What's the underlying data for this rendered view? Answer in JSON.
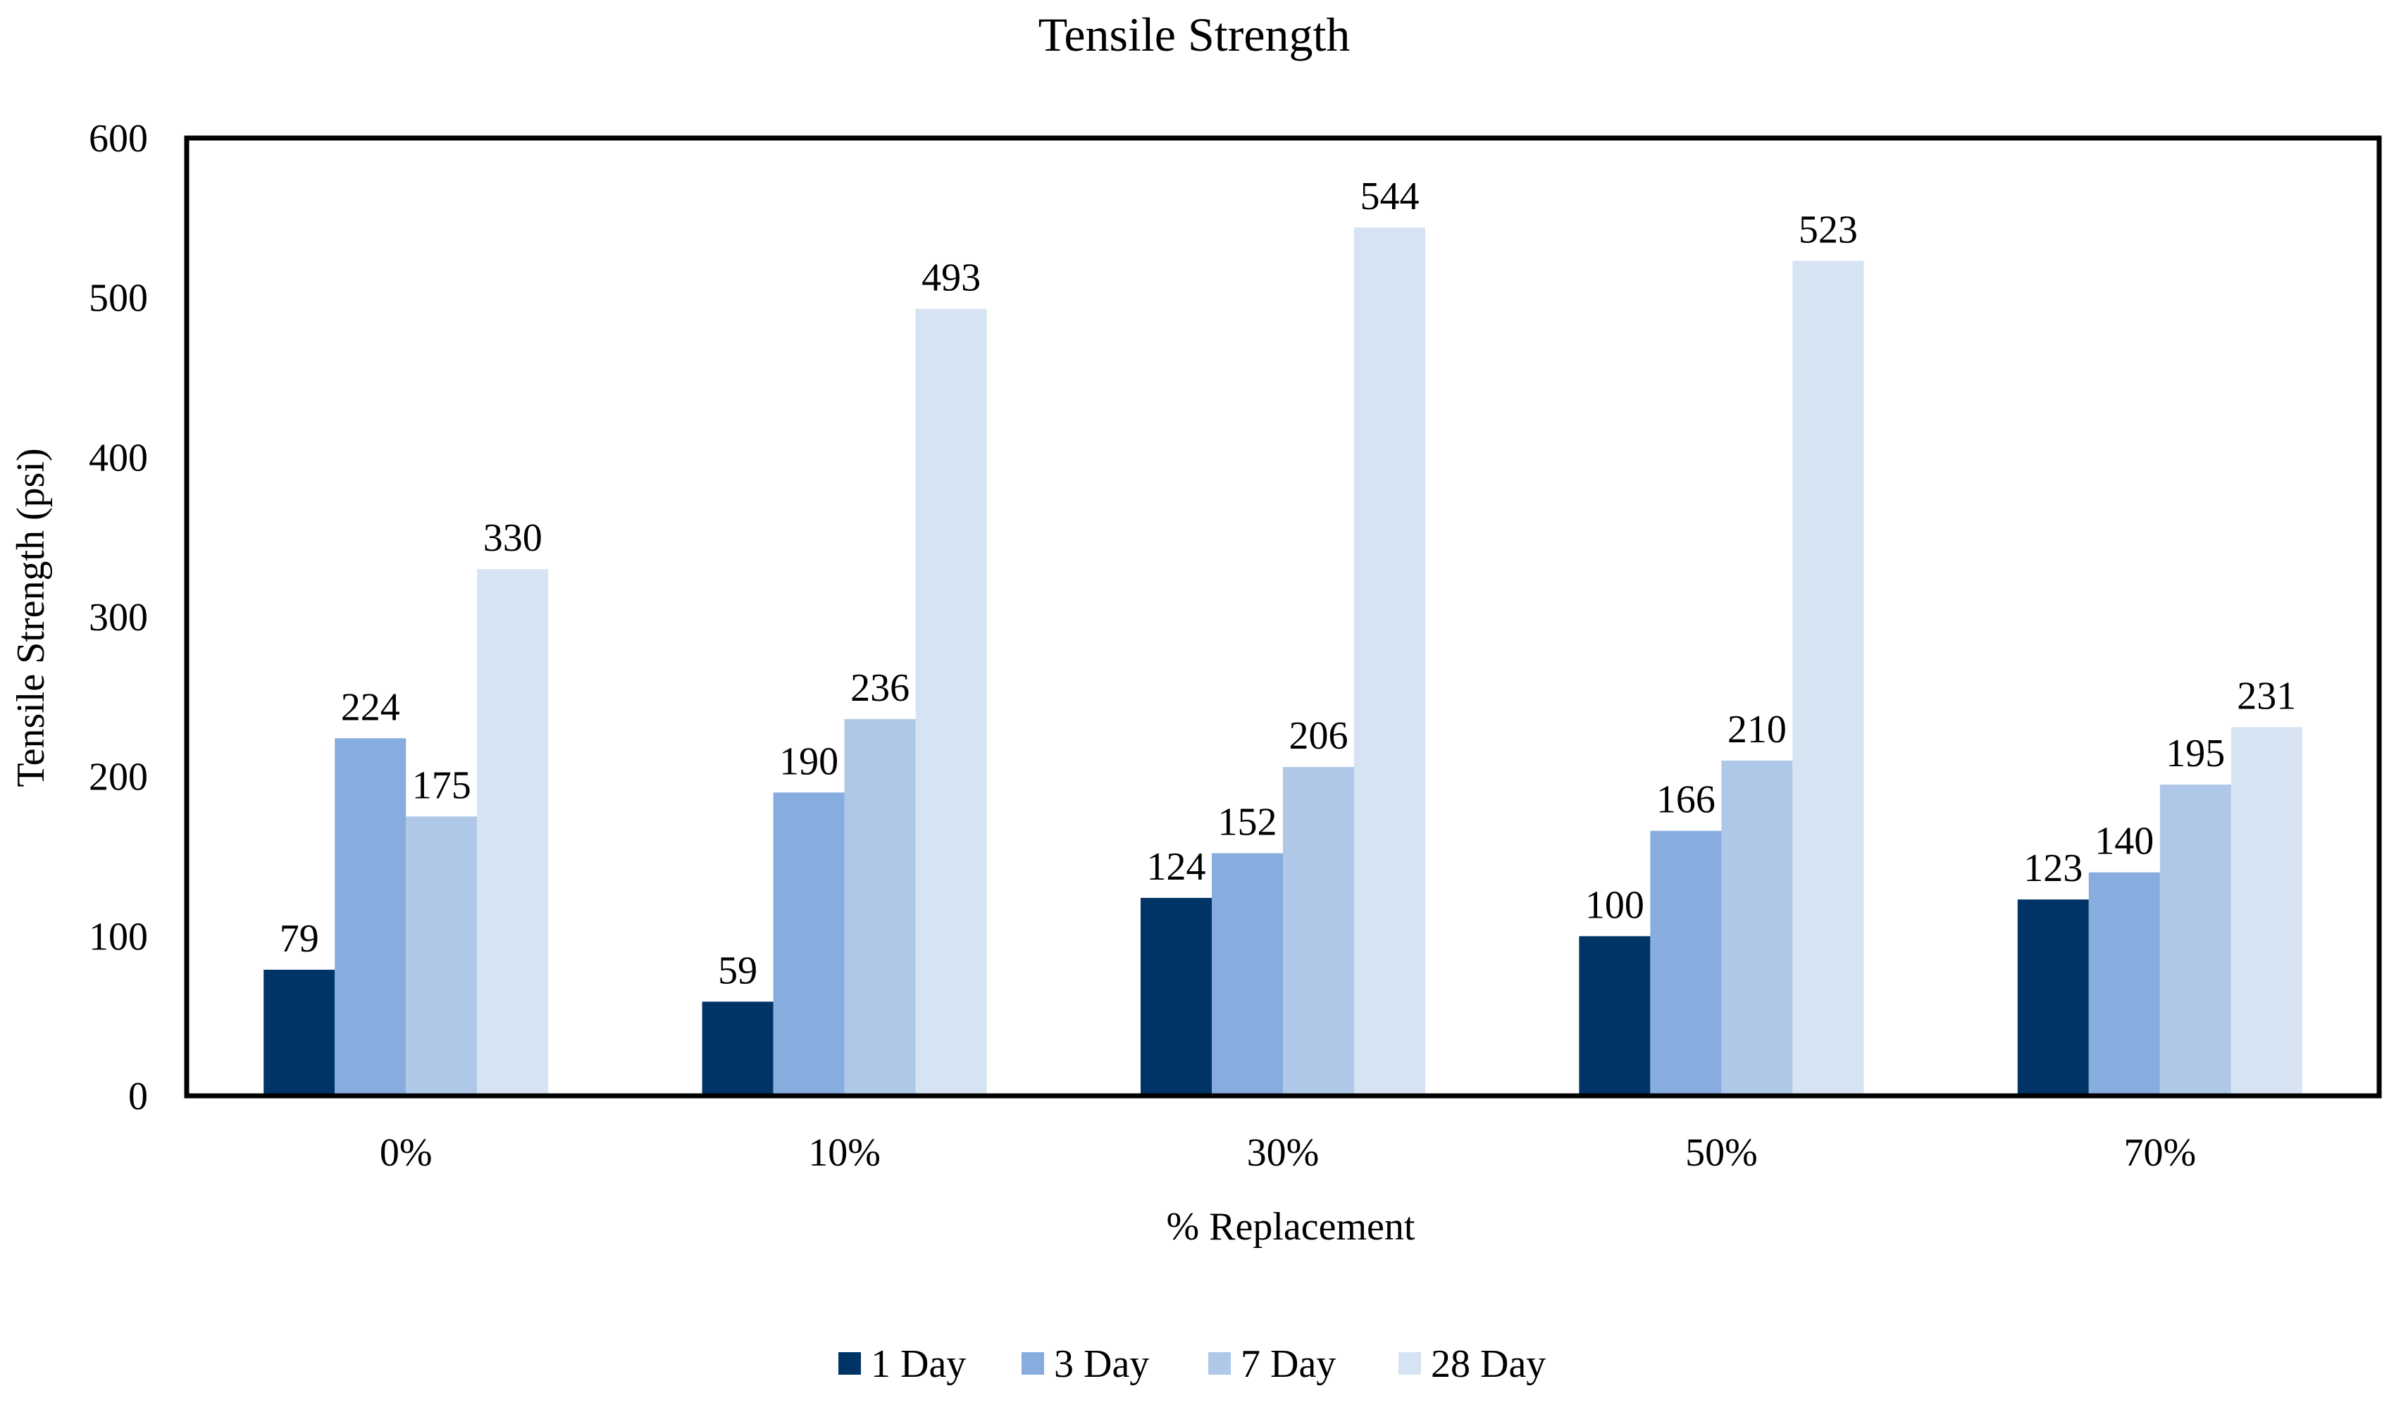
{
  "chart_data": {
    "type": "bar",
    "title": "Tensile Strength",
    "xlabel": "% Replacement",
    "ylabel": "Tensile Strength (psi)",
    "ylim": [
      0,
      600
    ],
    "yticks": [
      0,
      100,
      200,
      300,
      400,
      500,
      600
    ],
    "grid": false,
    "legend_position": "bottom",
    "categories": [
      "0%",
      "10%",
      "30%",
      "50%",
      "70%"
    ],
    "series": [
      {
        "name": "1 Day",
        "color": "#003366",
        "values": [
          79,
          59,
          124,
          100,
          123
        ]
      },
      {
        "name": "3 Day",
        "color": "#86ADDE",
        "values": [
          224,
          190,
          152,
          166,
          140
        ]
      },
      {
        "name": "7 Day",
        "color": "#AFC8E8",
        "values": [
          175,
          236,
          206,
          210,
          195
        ]
      },
      {
        "name": "28 Day",
        "color": "#D6E3F3",
        "values": [
          330,
          493,
          544,
          523,
          231
        ]
      }
    ]
  }
}
